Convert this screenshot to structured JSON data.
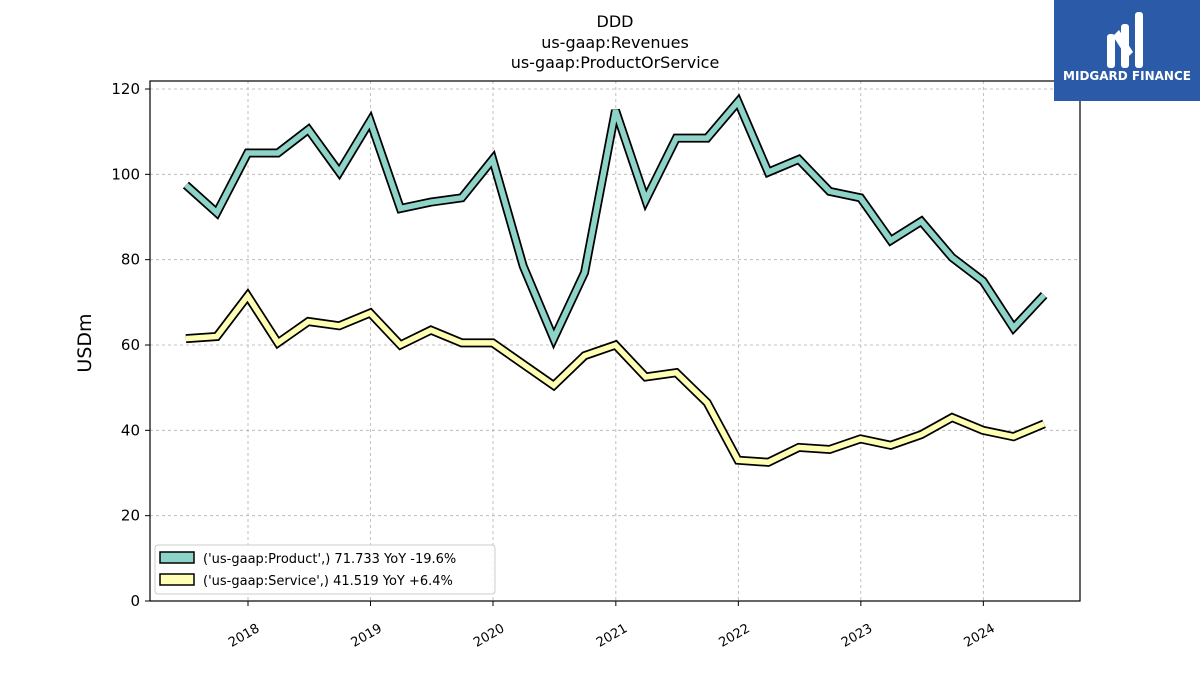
{
  "chart_data": {
    "type": "line",
    "title_lines": [
      "DDD",
      "us-gaap:Revenues",
      "us-gaap:ProductOrService"
    ],
    "xlabel": "",
    "ylabel": "USDm",
    "ylim": [
      0,
      120
    ],
    "yticks": [
      0,
      20,
      40,
      60,
      80,
      100,
      120
    ],
    "xticks": [
      "2018",
      "2019",
      "2020",
      "2021",
      "2022",
      "2023",
      "2024"
    ],
    "grid": true,
    "legend_position": "lower-left",
    "x": [
      "2017-06-30",
      "2017-09-30",
      "2017-12-31",
      "2018-03-31",
      "2018-06-30",
      "2018-09-30",
      "2018-12-31",
      "2019-03-31",
      "2019-06-30",
      "2019-09-30",
      "2019-12-31",
      "2020-03-31",
      "2020-06-30",
      "2020-09-30",
      "2020-12-31",
      "2021-03-31",
      "2021-06-30",
      "2021-09-30",
      "2021-12-31",
      "2022-03-31",
      "2022-06-30",
      "2022-09-30",
      "2022-12-31",
      "2023-03-31",
      "2023-06-30",
      "2023-09-30",
      "2023-12-31",
      "2024-03-31",
      "2024-06-30"
    ],
    "series": [
      {
        "name": "('us-gaap:Product',) 71.733 YoY -19.6%",
        "color": "#8dd3c7",
        "values": [
          97.5,
          91.0,
          105.0,
          105.0,
          110.5,
          100.5,
          112.5,
          92.0,
          93.5,
          94.5,
          103.5,
          78.5,
          61.5,
          77.0,
          115.0,
          94.0,
          108.5,
          108.5,
          117.0,
          100.5,
          103.5,
          96.0,
          94.5,
          84.5,
          89.0,
          80.5,
          75.0,
          64.0,
          71.7
        ]
      },
      {
        "name": "('us-gaap:Service',) 41.519 YoY +6.4%",
        "color": "#ffffb3",
        "values": [
          61.5,
          62.0,
          71.5,
          60.5,
          65.5,
          64.5,
          67.5,
          60.0,
          63.5,
          60.5,
          60.5,
          55.5,
          50.5,
          57.5,
          60.0,
          52.5,
          53.5,
          46.5,
          33.0,
          32.5,
          36.0,
          35.5,
          38.0,
          36.5,
          39.0,
          43.0,
          40.0,
          38.5,
          41.5
        ]
      }
    ]
  },
  "logo": {
    "text": "MIDGARD FINANCE",
    "background": "#2b5aa8"
  }
}
